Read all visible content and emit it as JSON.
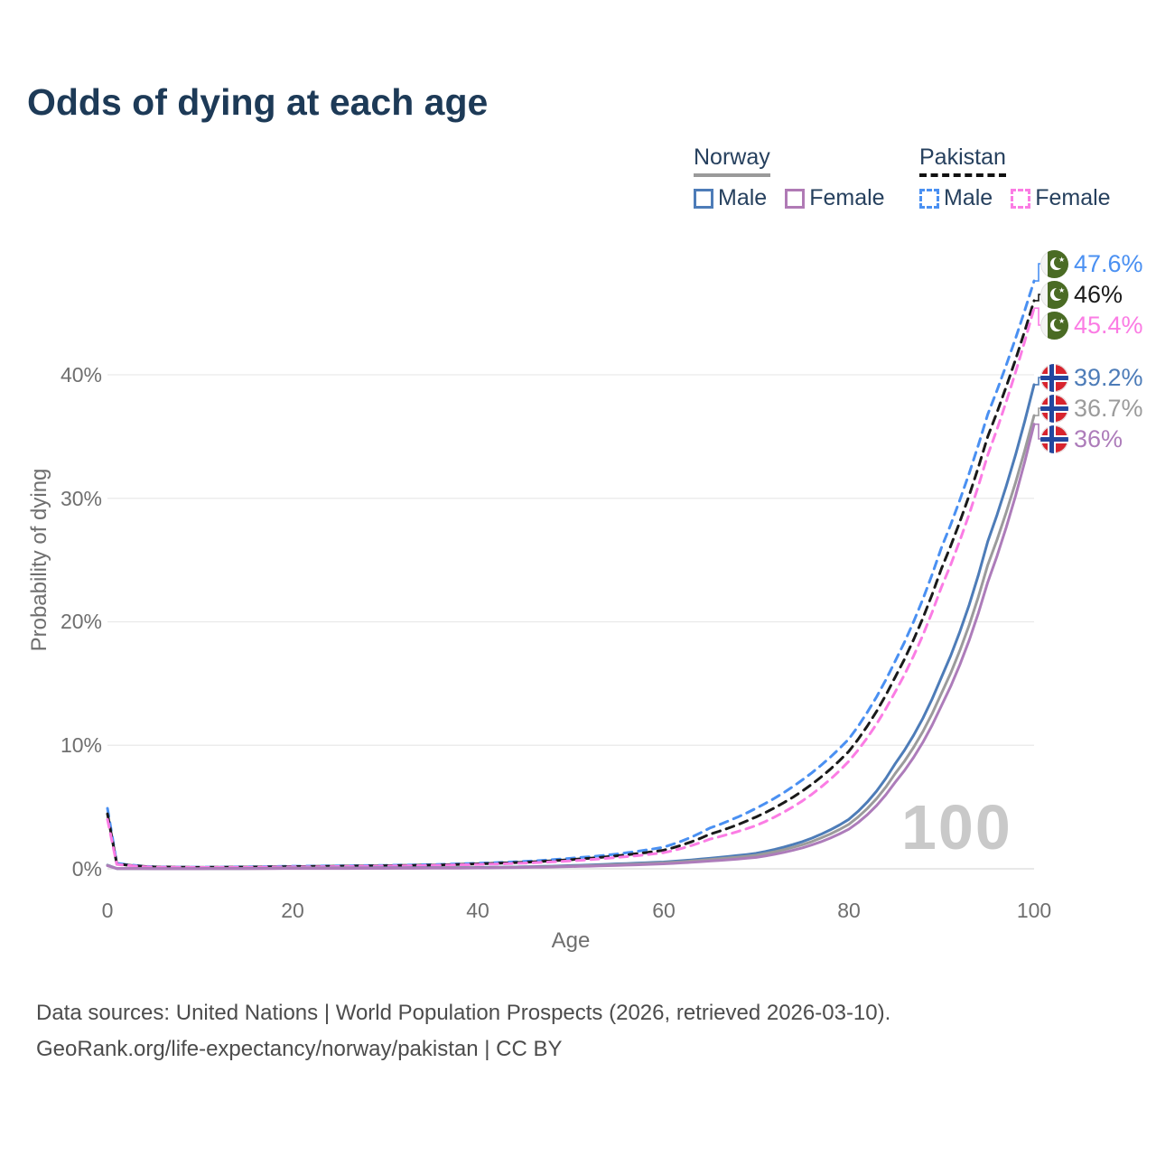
{
  "title": "Odds of dying at each age",
  "legend": {
    "norway": {
      "label": "Norway",
      "male": "Male",
      "female": "Female"
    },
    "pakistan": {
      "label": "Pakistan",
      "male": "Male",
      "female": "Female"
    }
  },
  "watermark_age": "100",
  "footer": {
    "line1": "Data sources: United Nations | World Population Prospects (2026, retrieved 2026-03-10).",
    "line2": "GeoRank.org/life-expectancy/norway/pakistan | CC BY"
  },
  "end_labels": [
    {
      "flag": "pakistan",
      "text": "47.6%",
      "color": "#4a90f2"
    },
    {
      "flag": "pakistan",
      "text": "46%",
      "color": "#1a1a1a"
    },
    {
      "flag": "pakistan",
      "text": "45.4%",
      "color": "#fb7ce4"
    },
    {
      "flag": "norway",
      "text": "39.2%",
      "color": "#4d7cb8"
    },
    {
      "flag": "norway",
      "text": "36.7%",
      "color": "#9b9b9b"
    },
    {
      "flag": "norway",
      "text": "36%",
      "color": "#ad7cba"
    }
  ],
  "chart_data": {
    "type": "line",
    "title": "Odds of dying at each age",
    "xlabel": "Age",
    "ylabel": "Probability of dying",
    "xlim": [
      0,
      100
    ],
    "ylim": [
      0,
      49
    ],
    "grid": true,
    "legend_position": "top-right",
    "xticks": [
      "0",
      "20",
      "40",
      "60",
      "80",
      "100"
    ],
    "ytick_labels": [
      "0%",
      "10%",
      "20%",
      "30%",
      "40%"
    ],
    "ytick_values": [
      0,
      10,
      20,
      30,
      40
    ],
    "ages": [
      0,
      1,
      5,
      10,
      15,
      20,
      25,
      30,
      35,
      40,
      45,
      50,
      55,
      60,
      65,
      70,
      75,
      80,
      85,
      90,
      95,
      100
    ],
    "series": [
      {
        "name": "Pakistan Male",
        "country": "Pakistan",
        "sex": "male",
        "style": "dashed",
        "color": "#4a90f2",
        "end_label": "47.6%",
        "values": [
          4.9,
          0.45,
          0.16,
          0.13,
          0.16,
          0.21,
          0.24,
          0.28,
          0.34,
          0.45,
          0.6,
          0.85,
          1.2,
          1.75,
          3.3,
          4.9,
          7.2,
          10.5,
          16.8,
          26.0,
          36.8,
          47.6
        ]
      },
      {
        "name": "Pakistan Both sexes",
        "country": "Pakistan",
        "sex": "both",
        "style": "dashed",
        "color": "#1a1a1a",
        "end_label": "46%",
        "values": [
          4.45,
          0.4,
          0.15,
          0.12,
          0.14,
          0.18,
          0.21,
          0.25,
          0.3,
          0.4,
          0.53,
          0.74,
          1.05,
          1.5,
          2.8,
          4.2,
          6.3,
          9.5,
          15.5,
          24.3,
          35.0,
          46.0
        ]
      },
      {
        "name": "Pakistan Female",
        "country": "Pakistan",
        "sex": "female",
        "style": "dashed",
        "color": "#fb7ce4",
        "end_label": "45.4%",
        "values": [
          4.0,
          0.36,
          0.13,
          0.11,
          0.12,
          0.15,
          0.18,
          0.22,
          0.27,
          0.35,
          0.46,
          0.64,
          0.92,
          1.3,
          2.4,
          3.5,
          5.5,
          8.7,
          14.3,
          22.8,
          33.5,
          45.4
        ]
      },
      {
        "name": "Norway Male",
        "country": "Norway",
        "sex": "male",
        "style": "solid",
        "color": "#4d7cb8",
        "end_label": "39.2%",
        "values": [
          0.3,
          0.02,
          0.01,
          0.01,
          0.03,
          0.06,
          0.07,
          0.08,
          0.09,
          0.11,
          0.16,
          0.26,
          0.4,
          0.55,
          0.85,
          1.25,
          2.2,
          4.0,
          8.5,
          15.5,
          26.5,
          39.2
        ]
      },
      {
        "name": "Norway Both sexes",
        "country": "Norway",
        "sex": "both",
        "style": "solid",
        "color": "#9b9b9b",
        "end_label": "36.7%",
        "values": [
          0.28,
          0.02,
          0.01,
          0.01,
          0.02,
          0.05,
          0.05,
          0.06,
          0.07,
          0.09,
          0.14,
          0.22,
          0.34,
          0.48,
          0.75,
          1.1,
          1.95,
          3.6,
          7.7,
          14.2,
          24.6,
          36.7
        ]
      },
      {
        "name": "Norway Female",
        "country": "Norway",
        "sex": "female",
        "style": "solid",
        "color": "#ad7cba",
        "end_label": "36%",
        "values": [
          0.25,
          0.02,
          0.01,
          0.01,
          0.02,
          0.03,
          0.03,
          0.04,
          0.05,
          0.07,
          0.11,
          0.18,
          0.28,
          0.4,
          0.63,
          0.92,
          1.7,
          3.2,
          7.0,
          13.2,
          23.2,
          36.0
        ]
      }
    ]
  }
}
